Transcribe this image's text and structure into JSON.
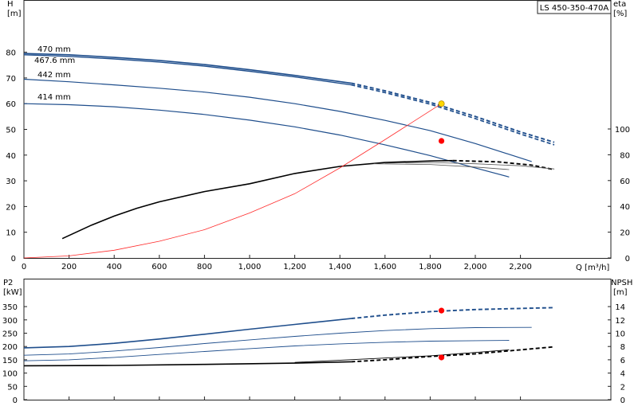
{
  "chart_data": [
    {
      "type": "line",
      "title": "LS 450-350-470A",
      "xlabel": "Q [m³/h]",
      "ylabel": "H\n[m]",
      "y2label": "eta\n[%]",
      "xlim": [
        0,
        2600
      ],
      "ylim": [
        0,
        90
      ],
      "y2lim": [
        0,
        150
      ],
      "xticks": [
        0,
        200,
        400,
        600,
        800,
        1000,
        1200,
        1400,
        1600,
        1800,
        2000,
        2200
      ],
      "xtick_labels": [
        "0",
        "200",
        "400",
        "600",
        "800",
        "1,000",
        "1,200",
        "1,400",
        "1,600",
        "1,800",
        "2,000",
        "2,200"
      ],
      "yticks": [
        0,
        10,
        20,
        30,
        40,
        50,
        60,
        70,
        80
      ],
      "y2ticks": [
        0,
        20,
        40,
        60,
        80,
        100
      ],
      "grid": false,
      "series": [
        {
          "name": "470 mm",
          "axis": "left",
          "color": "#1f4e8c",
          "width": 1.6,
          "x": [
            0,
            200,
            400,
            600,
            800,
            1000,
            1200,
            1450
          ],
          "y": [
            79.5,
            79,
            78,
            76.8,
            75.2,
            73.2,
            71,
            68
          ],
          "x_dashed": [
            1450,
            1600,
            1800,
            2000,
            2200,
            2350
          ],
          "y_dashed": [
            68,
            65,
            60.5,
            55,
            49,
            45
          ]
        },
        {
          "name": "467.6 mm",
          "axis": "left",
          "color": "#1f4e8c",
          "width": 1.4,
          "x": [
            0,
            200,
            400,
            600,
            800,
            1000,
            1200,
            1450
          ],
          "y": [
            79,
            78.4,
            77.4,
            76.2,
            74.6,
            72.6,
            70.4,
            67.3
          ],
          "x_dashed": [
            1450,
            1600,
            1800,
            2000,
            2200,
            2350
          ],
          "y_dashed": [
            67.3,
            64.3,
            59.8,
            54.2,
            48.2,
            44
          ]
        },
        {
          "name": "442 mm",
          "axis": "left",
          "color": "#1f4e8c",
          "width": 1.2,
          "x": [
            0,
            200,
            400,
            600,
            800,
            1000,
            1200,
            1400,
            1600,
            1800,
            2000,
            2250
          ],
          "y": [
            69.5,
            68.5,
            67.3,
            66,
            64.5,
            62.5,
            60,
            57,
            53.5,
            49.5,
            44.5,
            37.5
          ]
        },
        {
          "name": "414 mm",
          "axis": "left",
          "color": "#1f4e8c",
          "width": 1.2,
          "x": [
            0,
            200,
            400,
            600,
            800,
            1000,
            1200,
            1400,
            1600,
            1800,
            2000,
            2150
          ],
          "y": [
            60,
            59.6,
            58.8,
            57.5,
            55.8,
            53.6,
            51,
            47.8,
            44,
            39.8,
            35,
            31.5
          ]
        },
        {
          "name": "",
          "axis": "right",
          "color": "#000000",
          "width": 1.6,
          "x": [
            170,
            300,
            400,
            500,
            600,
            800,
            1000,
            1200,
            1400,
            1600,
            1800,
            1900
          ],
          "y": [
            15,
            25.5,
            32.5,
            38.5,
            43.5,
            51.5,
            57.5,
            65.5,
            71,
            74,
            75.2,
            75.5
          ],
          "x_dashed": [
            1900,
            2100,
            2250,
            2350
          ],
          "y_dashed": [
            75.5,
            74.5,
            72,
            68.5
          ]
        },
        {
          "name": "",
          "axis": "right",
          "color": "#555555",
          "width": 0.8,
          "x": [
            1600,
            1800,
            2000,
            2200,
            2350
          ],
          "y": [
            73.5,
            74,
            73,
            71.5,
            69
          ]
        },
        {
          "name": "",
          "axis": "right",
          "color": "#555555",
          "width": 0.8,
          "x": [
            1550,
            1800,
            2000,
            2150
          ],
          "y": [
            73,
            72.5,
            70.5,
            68.5
          ]
        },
        {
          "name": "",
          "axis": "left",
          "color": "#ff2a2a",
          "width": 0.8,
          "x": [
            0,
            200,
            400,
            600,
            800,
            1000,
            1200,
            1400,
            1600,
            1850
          ],
          "y": [
            0,
            0.8,
            3,
            6.5,
            11,
            17.5,
            25,
            35,
            46,
            60
          ]
        }
      ],
      "markers": [
        {
          "x": 1850,
          "y": 60,
          "axis": "left",
          "color": "#ffd700"
        },
        {
          "x": 1850,
          "y": 45.5,
          "axis": "left",
          "color": "#ff0000"
        }
      ],
      "annotations": [
        "470 mm",
        "467.6 mm",
        "442 mm",
        "414 mm"
      ]
    },
    {
      "type": "line",
      "ylabel": "P2\n[kW]",
      "y2label": "NPSH\n[m]",
      "xlim": [
        0,
        2600
      ],
      "ylim": [
        0,
        400
      ],
      "y2lim": [
        0,
        16
      ],
      "yticks": [
        0,
        50,
        100,
        150,
        200,
        250,
        300,
        350
      ],
      "y2ticks": [
        0,
        2,
        4,
        6,
        8,
        10,
        12,
        14
      ],
      "grid": false,
      "series": [
        {
          "name": "",
          "axis": "left",
          "color": "#1f4e8c",
          "width": 1.6,
          "x": [
            0,
            200,
            400,
            600,
            800,
            1000,
            1200,
            1450
          ],
          "y": [
            195,
            200,
            212,
            228,
            246,
            265,
            283,
            305
          ],
          "x_dashed": [
            1450,
            1600,
            1800,
            2000,
            2200,
            2350
          ],
          "y_dashed": [
            305,
            318,
            331,
            339,
            343,
            346
          ]
        },
        {
          "name": "",
          "axis": "left",
          "color": "#1f4e8c",
          "width": 0.9,
          "x": [
            0,
            200,
            400,
            600,
            800,
            1000,
            1200,
            1400,
            1600,
            1800,
            2000,
            2250
          ],
          "y": [
            167,
            172,
            183,
            196,
            211,
            225,
            238,
            250,
            260,
            267,
            271,
            272
          ]
        },
        {
          "name": "",
          "axis": "left",
          "color": "#1f4e8c",
          "width": 0.9,
          "x": [
            0,
            200,
            400,
            600,
            800,
            1000,
            1200,
            1400,
            1600,
            1800,
            2000,
            2150
          ],
          "y": [
            146,
            150,
            159,
            170,
            181,
            192,
            202,
            210,
            216,
            220,
            222,
            223
          ]
        },
        {
          "name": "",
          "axis": "right",
          "color": "#000000",
          "width": 1.6,
          "x": [
            0,
            400,
            800,
            1200,
            1450
          ],
          "y": [
            5.1,
            5.15,
            5.3,
            5.5,
            5.7
          ],
          "x_dashed": [
            1450,
            1600,
            1800,
            2000,
            2200,
            2350
          ],
          "y_dashed": [
            5.7,
            6.0,
            6.5,
            6.9,
            7.5,
            7.95
          ]
        },
        {
          "name": "",
          "axis": "right",
          "color": "#000000",
          "width": 0.9,
          "x": [
            1200,
            1500,
            1800,
            2000,
            2150
          ],
          "y": [
            5.6,
            6.1,
            6.6,
            7.1,
            7.5
          ]
        }
      ],
      "markers": [
        {
          "x": 1850,
          "y": 335,
          "axis": "left",
          "color": "#ff0000"
        },
        {
          "x": 1850,
          "y": 6.35,
          "axis": "right",
          "color": "#ff0000"
        }
      ]
    }
  ]
}
